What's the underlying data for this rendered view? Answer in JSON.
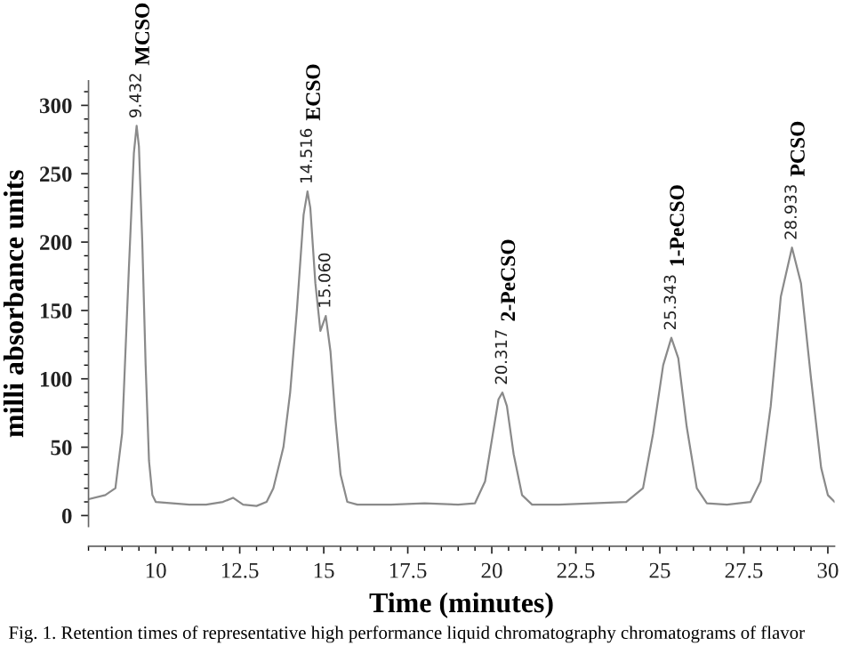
{
  "chart_data": {
    "type": "line",
    "xlabel": "Time (minutes)",
    "ylabel": "milli absorbance units",
    "xlim": [
      8,
      30.2
    ],
    "ylim": [
      -8,
      318
    ],
    "xticks": [
      10,
      12.5,
      15,
      17.5,
      20,
      22.5,
      25,
      27.5,
      30
    ],
    "yticks": [
      0,
      50,
      100,
      150,
      200,
      250,
      300
    ],
    "grid": false,
    "legend": false,
    "marker": "none",
    "line_style": "solid",
    "series": [
      {
        "color": "#8a8a8a",
        "x": [
          8.0,
          8.5,
          8.8,
          9.0,
          9.2,
          9.35,
          9.432,
          9.5,
          9.6,
          9.7,
          9.8,
          9.9,
          10.0,
          10.5,
          11,
          11.5,
          12.0,
          12.3,
          12.6,
          13.0,
          13.3,
          13.5,
          13.8,
          14.0,
          14.2,
          14.4,
          14.516,
          14.6,
          14.75,
          14.9,
          15.06,
          15.2,
          15.35,
          15.5,
          15.7,
          16,
          17,
          18,
          19,
          19.5,
          19.8,
          20.0,
          20.2,
          20.317,
          20.45,
          20.65,
          20.9,
          21.2,
          22,
          23,
          24,
          24.5,
          24.8,
          25.1,
          25.343,
          25.55,
          25.8,
          26.1,
          26.4,
          27,
          27.7,
          28.0,
          28.3,
          28.6,
          28.933,
          29.2,
          29.5,
          29.8,
          30.0,
          30.2
        ],
        "values": [
          12,
          15,
          20,
          60,
          180,
          265,
          285,
          270,
          200,
          110,
          40,
          15,
          10,
          9,
          8,
          8,
          10,
          13,
          8,
          7,
          10,
          20,
          50,
          90,
          150,
          220,
          237,
          225,
          170,
          135,
          146,
          120,
          70,
          30,
          10,
          8,
          8,
          9,
          8,
          9,
          25,
          55,
          85,
          90,
          80,
          45,
          15,
          8,
          8,
          9,
          10,
          20,
          60,
          110,
          130,
          115,
          65,
          20,
          9,
          8,
          10,
          25,
          80,
          160,
          196,
          170,
          100,
          35,
          15,
          10
        ]
      }
    ],
    "annotations": [
      {
        "text": "9.432",
        "x": 9.432,
        "y": 285
      },
      "MCSO",
      {
        "text": "14.516",
        "x": 14.516,
        "y": 237
      },
      "ECSO",
      {
        "text": "15.060",
        "x": 15.06,
        "y": 146
      },
      {
        "text": "20.317",
        "x": 20.317,
        "y": 90
      },
      "2-PeCSO",
      {
        "text": "25.343",
        "x": 25.343,
        "y": 130
      },
      "1-PeCSO",
      {
        "text": "28.933",
        "x": 28.933,
        "y": 196
      },
      "PCSO",
      "Fig. 1. Retention times of representative high performance liquid chromatography chromatograms of flavor"
    ]
  }
}
